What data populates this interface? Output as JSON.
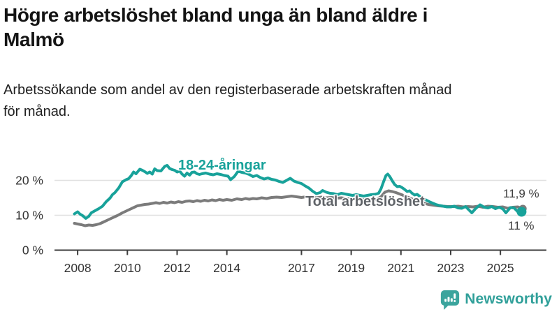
{
  "header": {
    "title": "Högre arbetslöshet bland unga än bland äldre i\nMalmö",
    "subtitle": "Arbetssökande som andel av den registerbaserade arbetskraften månad\nför månad."
  },
  "footer": {
    "brand": "Newsworthy",
    "brand_icon": "bar-chart-speech-bubble-icon"
  },
  "colors": {
    "youth_line": "#18a29a",
    "total_line": "#7b7b7b",
    "total_label": "#5f6368",
    "axis": "#3d3d3d",
    "grid": "#e0e0e0",
    "tick_text": "#333333",
    "value_text": "#3d3d3d",
    "brand": "#31a09a",
    "background": "#ffffff"
  },
  "chart_data": {
    "type": "line",
    "title": "Högre arbetslöshet bland unga än bland äldre i Malmö",
    "subtitle": "Arbetssökande som andel av den registerbaserade arbetskraften månad för månad.",
    "xlabel": "",
    "ylabel": "",
    "xlim": [
      2007.07,
      2026.85
    ],
    "ylim": [
      0,
      27
    ],
    "grid": "horizontal",
    "legend_position": "inline-labels",
    "x_ticks": [
      {
        "value": 2008,
        "label": "2008"
      },
      {
        "value": 2010,
        "label": "2010"
      },
      {
        "value": 2012,
        "label": "2012"
      },
      {
        "value": 2014,
        "label": "2014"
      },
      {
        "value": 2017,
        "label": "2017"
      },
      {
        "value": 2019,
        "label": "2019"
      },
      {
        "value": 2021,
        "label": "2021"
      },
      {
        "value": 2023,
        "label": "2023"
      },
      {
        "value": 2025,
        "label": "2025"
      }
    ],
    "y_ticks": [
      {
        "value": 0,
        "label": "0 %"
      },
      {
        "value": 10,
        "label": "10 %"
      },
      {
        "value": 20,
        "label": "20 %"
      }
    ],
    "series": [
      {
        "name": "Total arbetslöshet",
        "color_key": "total_line",
        "label_color_key": "total_label",
        "end_label": "11,9 %",
        "end_dot_radius": 5.5,
        "points": [
          [
            2007.87,
            7.7
          ],
          [
            2008.0,
            7.5
          ],
          [
            2008.15,
            7.3
          ],
          [
            2008.3,
            7.0
          ],
          [
            2008.45,
            7.2
          ],
          [
            2008.6,
            7.1
          ],
          [
            2008.75,
            7.3
          ],
          [
            2008.9,
            7.6
          ],
          [
            2009.05,
            8.1
          ],
          [
            2009.2,
            8.6
          ],
          [
            2009.35,
            9.1
          ],
          [
            2009.5,
            9.6
          ],
          [
            2009.65,
            10.1
          ],
          [
            2009.8,
            10.7
          ],
          [
            2009.95,
            11.2
          ],
          [
            2010.1,
            11.7
          ],
          [
            2010.25,
            12.2
          ],
          [
            2010.4,
            12.7
          ],
          [
            2010.55,
            12.9
          ],
          [
            2010.7,
            13.1
          ],
          [
            2010.85,
            13.2
          ],
          [
            2011.0,
            13.4
          ],
          [
            2011.15,
            13.6
          ],
          [
            2011.3,
            13.4
          ],
          [
            2011.45,
            13.7
          ],
          [
            2011.6,
            13.5
          ],
          [
            2011.75,
            13.8
          ],
          [
            2011.9,
            13.6
          ],
          [
            2012.05,
            13.9
          ],
          [
            2012.2,
            13.7
          ],
          [
            2012.35,
            14.0
          ],
          [
            2012.5,
            14.1
          ],
          [
            2012.65,
            13.9
          ],
          [
            2012.8,
            14.2
          ],
          [
            2012.95,
            14.0
          ],
          [
            2013.1,
            14.3
          ],
          [
            2013.25,
            14.1
          ],
          [
            2013.4,
            14.4
          ],
          [
            2013.55,
            14.2
          ],
          [
            2013.7,
            14.5
          ],
          [
            2013.85,
            14.3
          ],
          [
            2014.0,
            14.5
          ],
          [
            2014.2,
            14.3
          ],
          [
            2014.4,
            14.7
          ],
          [
            2014.6,
            14.5
          ],
          [
            2014.75,
            14.8
          ],
          [
            2014.9,
            14.6
          ],
          [
            2015.05,
            14.8
          ],
          [
            2015.2,
            14.7
          ],
          [
            2015.4,
            15.0
          ],
          [
            2015.6,
            14.8
          ],
          [
            2015.8,
            15.1
          ],
          [
            2016.0,
            15.2
          ],
          [
            2016.2,
            15.1
          ],
          [
            2016.4,
            15.3
          ],
          [
            2016.6,
            15.5
          ],
          [
            2016.8,
            15.3
          ],
          [
            2017.0,
            15.1
          ],
          [
            2017.2,
            15.3
          ],
          [
            2017.4,
            15.1
          ],
          [
            2017.6,
            15.0
          ],
          [
            2017.8,
            15.2
          ],
          [
            2018.0,
            15.0
          ],
          [
            2018.2,
            15.1
          ],
          [
            2018.4,
            14.9
          ],
          [
            2018.6,
            15.0
          ],
          [
            2018.8,
            14.8
          ],
          [
            2019.0,
            14.7
          ],
          [
            2019.2,
            14.6
          ],
          [
            2019.4,
            14.5
          ],
          [
            2019.6,
            14.4
          ],
          [
            2019.8,
            14.4
          ],
          [
            2020.0,
            14.5
          ],
          [
            2020.2,
            15.3
          ],
          [
            2020.35,
            16.6
          ],
          [
            2020.5,
            17.0
          ],
          [
            2020.65,
            16.8
          ],
          [
            2020.8,
            16.5
          ],
          [
            2020.95,
            16.1
          ],
          [
            2021.1,
            15.7
          ],
          [
            2021.3,
            15.1
          ],
          [
            2021.5,
            14.5
          ],
          [
            2021.7,
            14.0
          ],
          [
            2021.9,
            13.5
          ],
          [
            2022.1,
            13.1
          ],
          [
            2022.3,
            12.9
          ],
          [
            2022.5,
            12.7
          ],
          [
            2022.7,
            12.6
          ],
          [
            2022.9,
            12.5
          ],
          [
            2023.1,
            12.5
          ],
          [
            2023.3,
            12.6
          ],
          [
            2023.5,
            12.4
          ],
          [
            2023.7,
            12.5
          ],
          [
            2023.9,
            12.4
          ],
          [
            2024.1,
            12.6
          ],
          [
            2024.3,
            12.3
          ],
          [
            2024.5,
            12.6
          ],
          [
            2024.7,
            12.5
          ],
          [
            2024.9,
            12.3
          ],
          [
            2025.1,
            12.4
          ],
          [
            2025.3,
            12.0
          ],
          [
            2025.5,
            12.3
          ],
          [
            2025.7,
            12.4
          ],
          [
            2025.9,
            11.9
          ]
        ]
      },
      {
        "name": "18-24-åringar",
        "color_key": "youth_line",
        "label_color_key": "youth_line",
        "end_label": "11 %",
        "end_dot_radius": 7,
        "points": [
          [
            2007.87,
            10.4
          ],
          [
            2008.0,
            11.0
          ],
          [
            2008.1,
            10.3
          ],
          [
            2008.2,
            9.9
          ],
          [
            2008.33,
            9.1
          ],
          [
            2008.45,
            9.7
          ],
          [
            2008.55,
            10.7
          ],
          [
            2008.7,
            11.3
          ],
          [
            2008.85,
            11.9
          ],
          [
            2009.0,
            12.6
          ],
          [
            2009.15,
            13.9
          ],
          [
            2009.3,
            14.9
          ],
          [
            2009.4,
            15.9
          ],
          [
            2009.5,
            16.5
          ],
          [
            2009.65,
            17.8
          ],
          [
            2009.8,
            19.6
          ],
          [
            2009.95,
            20.2
          ],
          [
            2010.05,
            20.5
          ],
          [
            2010.15,
            21.3
          ],
          [
            2010.25,
            22.4
          ],
          [
            2010.35,
            21.9
          ],
          [
            2010.5,
            23.2
          ],
          [
            2010.6,
            22.9
          ],
          [
            2010.7,
            22.5
          ],
          [
            2010.8,
            22.0
          ],
          [
            2010.9,
            22.4
          ],
          [
            2011.0,
            21.8
          ],
          [
            2011.1,
            23.3
          ],
          [
            2011.2,
            22.8
          ],
          [
            2011.35,
            22.7
          ],
          [
            2011.5,
            24.0
          ],
          [
            2011.6,
            24.3
          ],
          [
            2011.7,
            23.4
          ],
          [
            2011.8,
            23.1
          ],
          [
            2011.9,
            22.9
          ],
          [
            2012.0,
            22.4
          ],
          [
            2012.1,
            22.7
          ],
          [
            2012.2,
            21.8
          ],
          [
            2012.3,
            21.2
          ],
          [
            2012.4,
            22.1
          ],
          [
            2012.5,
            21.5
          ],
          [
            2012.6,
            22.3
          ],
          [
            2012.7,
            22.4
          ],
          [
            2012.8,
            21.9
          ],
          [
            2012.9,
            21.7
          ],
          [
            2013.0,
            21.9
          ],
          [
            2013.15,
            22.1
          ],
          [
            2013.3,
            21.8
          ],
          [
            2013.45,
            21.6
          ],
          [
            2013.6,
            21.9
          ],
          [
            2013.75,
            21.7
          ],
          [
            2013.9,
            21.4
          ],
          [
            2014.05,
            21.2
          ],
          [
            2014.15,
            20.2
          ],
          [
            2014.3,
            21.1
          ],
          [
            2014.45,
            22.6
          ],
          [
            2014.6,
            22.3
          ],
          [
            2014.75,
            22.1
          ],
          [
            2014.9,
            21.7
          ],
          [
            2015.05,
            21.1
          ],
          [
            2015.2,
            21.4
          ],
          [
            2015.35,
            20.8
          ],
          [
            2015.5,
            20.4
          ],
          [
            2015.65,
            20.7
          ],
          [
            2015.8,
            20.3
          ],
          [
            2015.95,
            20.1
          ],
          [
            2016.1,
            19.7
          ],
          [
            2016.25,
            19.4
          ],
          [
            2016.4,
            20.0
          ],
          [
            2016.55,
            20.6
          ],
          [
            2016.7,
            19.8
          ],
          [
            2016.85,
            19.4
          ],
          [
            2017.0,
            19.1
          ],
          [
            2017.15,
            18.4
          ],
          [
            2017.3,
            17.8
          ],
          [
            2017.45,
            16.9
          ],
          [
            2017.6,
            16.2
          ],
          [
            2017.75,
            16.5
          ],
          [
            2017.85,
            17.1
          ],
          [
            2018.0,
            16.6
          ],
          [
            2018.15,
            16.3
          ],
          [
            2018.3,
            16.2
          ],
          [
            2018.45,
            15.9
          ],
          [
            2018.6,
            16.3
          ],
          [
            2018.75,
            16.1
          ],
          [
            2018.9,
            15.9
          ],
          [
            2019.05,
            15.7
          ],
          [
            2019.2,
            15.9
          ],
          [
            2019.35,
            15.7
          ],
          [
            2019.5,
            15.5
          ],
          [
            2019.65,
            15.7
          ],
          [
            2019.8,
            15.9
          ],
          [
            2019.95,
            16.0
          ],
          [
            2020.1,
            16.3
          ],
          [
            2020.2,
            17.6
          ],
          [
            2020.3,
            19.6
          ],
          [
            2020.4,
            21.4
          ],
          [
            2020.47,
            21.8
          ],
          [
            2020.55,
            21.1
          ],
          [
            2020.65,
            19.9
          ],
          [
            2020.75,
            18.8
          ],
          [
            2020.85,
            18.2
          ],
          [
            2020.95,
            18.3
          ],
          [
            2021.05,
            17.9
          ],
          [
            2021.15,
            17.4
          ],
          [
            2021.25,
            16.8
          ],
          [
            2021.35,
            17.0
          ],
          [
            2021.45,
            16.3
          ],
          [
            2021.55,
            15.8
          ],
          [
            2021.65,
            16.0
          ],
          [
            2021.8,
            15.2
          ],
          [
            2022.0,
            14.4
          ],
          [
            2022.2,
            13.7
          ],
          [
            2022.4,
            13.1
          ],
          [
            2022.55,
            12.8
          ],
          [
            2022.7,
            12.6
          ],
          [
            2022.85,
            12.4
          ],
          [
            2023.0,
            12.4
          ],
          [
            2023.15,
            12.6
          ],
          [
            2023.3,
            12.1
          ],
          [
            2023.45,
            12.0
          ],
          [
            2023.6,
            12.5
          ],
          [
            2023.85,
            10.7
          ],
          [
            2024.0,
            11.9
          ],
          [
            2024.18,
            13.0
          ],
          [
            2024.35,
            12.3
          ],
          [
            2024.5,
            12.1
          ],
          [
            2024.65,
            12.5
          ],
          [
            2024.8,
            11.9
          ],
          [
            2024.95,
            12.3
          ],
          [
            2025.1,
            11.8
          ],
          [
            2025.22,
            10.7
          ],
          [
            2025.4,
            12.2
          ],
          [
            2025.55,
            12.1
          ],
          [
            2025.7,
            11.0
          ],
          [
            2025.85,
            11.0
          ]
        ]
      }
    ]
  }
}
